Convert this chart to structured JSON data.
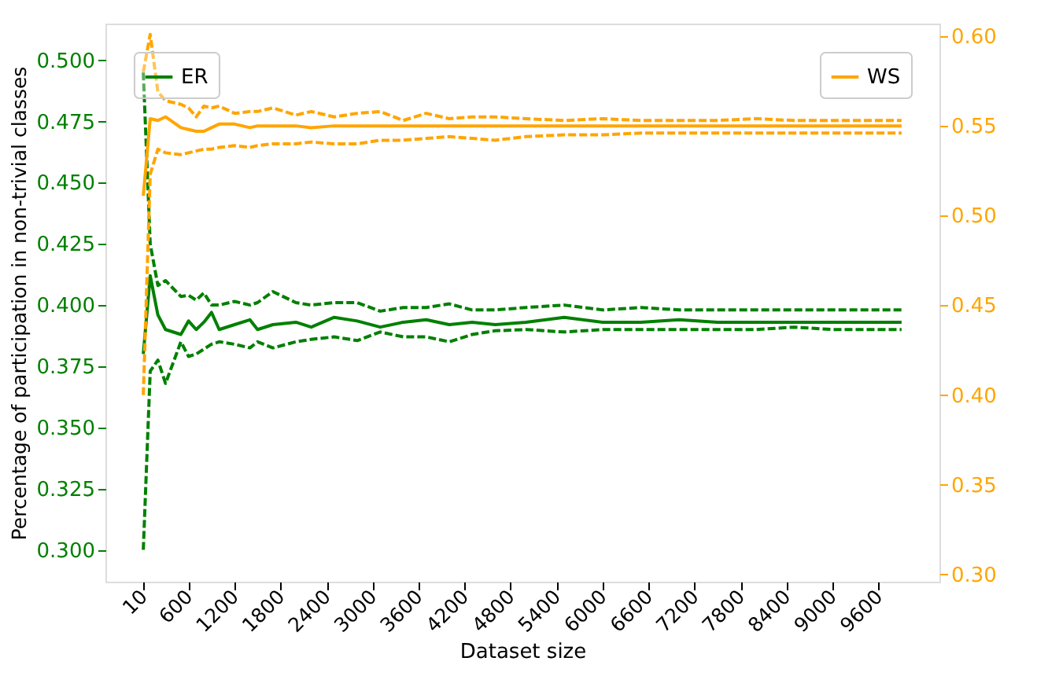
{
  "chart_data": {
    "type": "line",
    "xlabel": "Dataset size",
    "ylabel": "Percentage of participation in non-trivial classes",
    "x": [
      10,
      100,
      200,
      300,
      500,
      600,
      700,
      800,
      900,
      1000,
      1200,
      1400,
      1500,
      1700,
      2000,
      2200,
      2500,
      2800,
      3100,
      3400,
      3700,
      4000,
      4300,
      4600,
      5000,
      5500,
      6000,
      6500,
      7000,
      7500,
      8000,
      8500,
      9000,
      9500,
      9900
    ],
    "series": [
      {
        "name": "ER",
        "color": "#008000",
        "line_style": "solid",
        "axis": "y",
        "values": [
          0.38,
          0.412,
          0.396,
          0.39,
          0.388,
          0.3935,
          0.39,
          0.393,
          0.397,
          0.39,
          0.392,
          0.394,
          0.39,
          0.392,
          0.393,
          0.391,
          0.395,
          0.3935,
          0.391,
          0.393,
          0.394,
          0.392,
          0.393,
          0.392,
          0.393,
          0.395,
          0.393,
          0.393,
          0.394,
          0.393,
          0.393,
          0.393,
          0.393,
          0.393,
          0.393
        ]
      },
      {
        "color": "#008000",
        "line_style": "dashed",
        "axis": "y",
        "values": [
          0.495,
          0.425,
          0.408,
          0.41,
          0.4035,
          0.404,
          0.402,
          0.405,
          0.4,
          0.4,
          0.4015,
          0.4,
          0.401,
          0.4055,
          0.401,
          0.4,
          0.401,
          0.401,
          0.3975,
          0.399,
          0.399,
          0.4005,
          0.398,
          0.398,
          0.399,
          0.4,
          0.398,
          0.399,
          0.398,
          0.398,
          0.398,
          0.398,
          0.398,
          0.398,
          0.398
        ]
      },
      {
        "color": "#008000",
        "line_style": "dashed",
        "axis": "y",
        "values": [
          0.3,
          0.373,
          0.3775,
          0.368,
          0.385,
          0.379,
          0.38,
          0.382,
          0.384,
          0.385,
          0.384,
          0.3825,
          0.385,
          0.3825,
          0.385,
          0.386,
          0.387,
          0.3855,
          0.389,
          0.387,
          0.387,
          0.385,
          0.388,
          0.3895,
          0.39,
          0.389,
          0.39,
          0.39,
          0.39,
          0.39,
          0.39,
          0.391,
          0.39,
          0.39,
          0.39
        ]
      },
      {
        "name": "WS",
        "color": "#ffa500",
        "line_style": "solid",
        "axis": "y2",
        "values": [
          0.511,
          0.554,
          0.553,
          0.555,
          0.549,
          0.548,
          0.547,
          0.547,
          0.549,
          0.551,
          0.551,
          0.549,
          0.55,
          0.55,
          0.55,
          0.549,
          0.55,
          0.55,
          0.55,
          0.55,
          0.55,
          0.55,
          0.55,
          0.55,
          0.55,
          0.55,
          0.55,
          0.55,
          0.55,
          0.55,
          0.55,
          0.55,
          0.55,
          0.55,
          0.55
        ]
      },
      {
        "color": "#ffa500",
        "line_style": "dashed",
        "axis": "y2",
        "values": [
          0.58,
          0.601,
          0.569,
          0.564,
          0.562,
          0.56,
          0.555,
          0.561,
          0.56,
          0.561,
          0.557,
          0.558,
          0.558,
          0.56,
          0.556,
          0.558,
          0.555,
          0.557,
          0.558,
          0.553,
          0.557,
          0.554,
          0.555,
          0.555,
          0.554,
          0.553,
          0.554,
          0.553,
          0.553,
          0.553,
          0.554,
          0.553,
          0.553,
          0.553,
          0.553
        ]
      },
      {
        "color": "#ffa500",
        "line_style": "dashed",
        "axis": "y2",
        "values": [
          0.4,
          0.523,
          0.537,
          0.535,
          0.534,
          0.535,
          0.536,
          0.537,
          0.537,
          0.538,
          0.539,
          0.538,
          0.539,
          0.54,
          0.54,
          0.541,
          0.54,
          0.54,
          0.542,
          0.542,
          0.543,
          0.544,
          0.543,
          0.542,
          0.544,
          0.545,
          0.545,
          0.546,
          0.546,
          0.546,
          0.546,
          0.546,
          0.546,
          0.546,
          0.546
        ]
      }
    ],
    "xlim": [
      -484,
      10394
    ],
    "xticks": [
      10,
      600,
      1200,
      1800,
      2400,
      3000,
      3600,
      4200,
      4800,
      5400,
      6000,
      6600,
      7200,
      7800,
      8400,
      9000,
      9600
    ],
    "ylim": [
      0.287,
      0.515
    ],
    "yticks": [
      {
        "value": 0.3,
        "label": "0.300"
      },
      {
        "value": 0.325,
        "label": "0.325"
      },
      {
        "value": 0.35,
        "label": "0.350"
      },
      {
        "value": 0.375,
        "label": "0.375"
      },
      {
        "value": 0.4,
        "label": "0.400"
      },
      {
        "value": 0.425,
        "label": "0.425"
      },
      {
        "value": 0.45,
        "label": "0.450"
      },
      {
        "value": 0.475,
        "label": "0.475"
      },
      {
        "value": 0.5,
        "label": "0.500"
      }
    ],
    "y2lim": [
      0.296,
      0.607
    ],
    "y2ticks": [
      {
        "value": 0.3,
        "label": "0.30"
      },
      {
        "value": 0.35,
        "label": "0.35"
      },
      {
        "value": 0.4,
        "label": "0.40"
      },
      {
        "value": 0.45,
        "label": "0.45"
      },
      {
        "value": 0.5,
        "label": "0.50"
      },
      {
        "value": 0.55,
        "label": "0.55"
      },
      {
        "value": 0.6,
        "label": "0.60"
      }
    ],
    "legend": [
      "top left",
      "top right"
    ],
    "grid": false
  }
}
